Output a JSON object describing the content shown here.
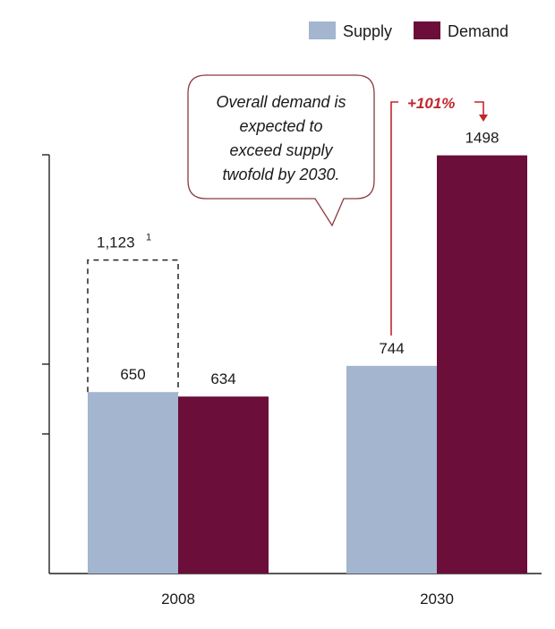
{
  "chart_data": {
    "type": "bar",
    "categories": [
      "2008",
      "2030"
    ],
    "series": [
      {
        "name": "Supply",
        "values": [
          650,
          744
        ]
      },
      {
        "name": "Demand",
        "values": [
          634,
          1498
        ]
      }
    ],
    "value_labels": [
      [
        "650",
        "744"
      ],
      [
        "634",
        "1498"
      ]
    ],
    "supply_potential": {
      "value": 1123,
      "label": "1,123",
      "footnote": "1"
    },
    "growth_label": "+101%",
    "callout": [
      "Overall demand is",
      "expected to",
      "exceed supply",
      "twofold by 2030."
    ],
    "ylim": [
      0,
      1500
    ],
    "legend_position": "top-right",
    "grid": false,
    "colors": {
      "Supply": "#a3b5cf",
      "Demand": "#6b0e3a",
      "accent": "#c0272d"
    }
  }
}
